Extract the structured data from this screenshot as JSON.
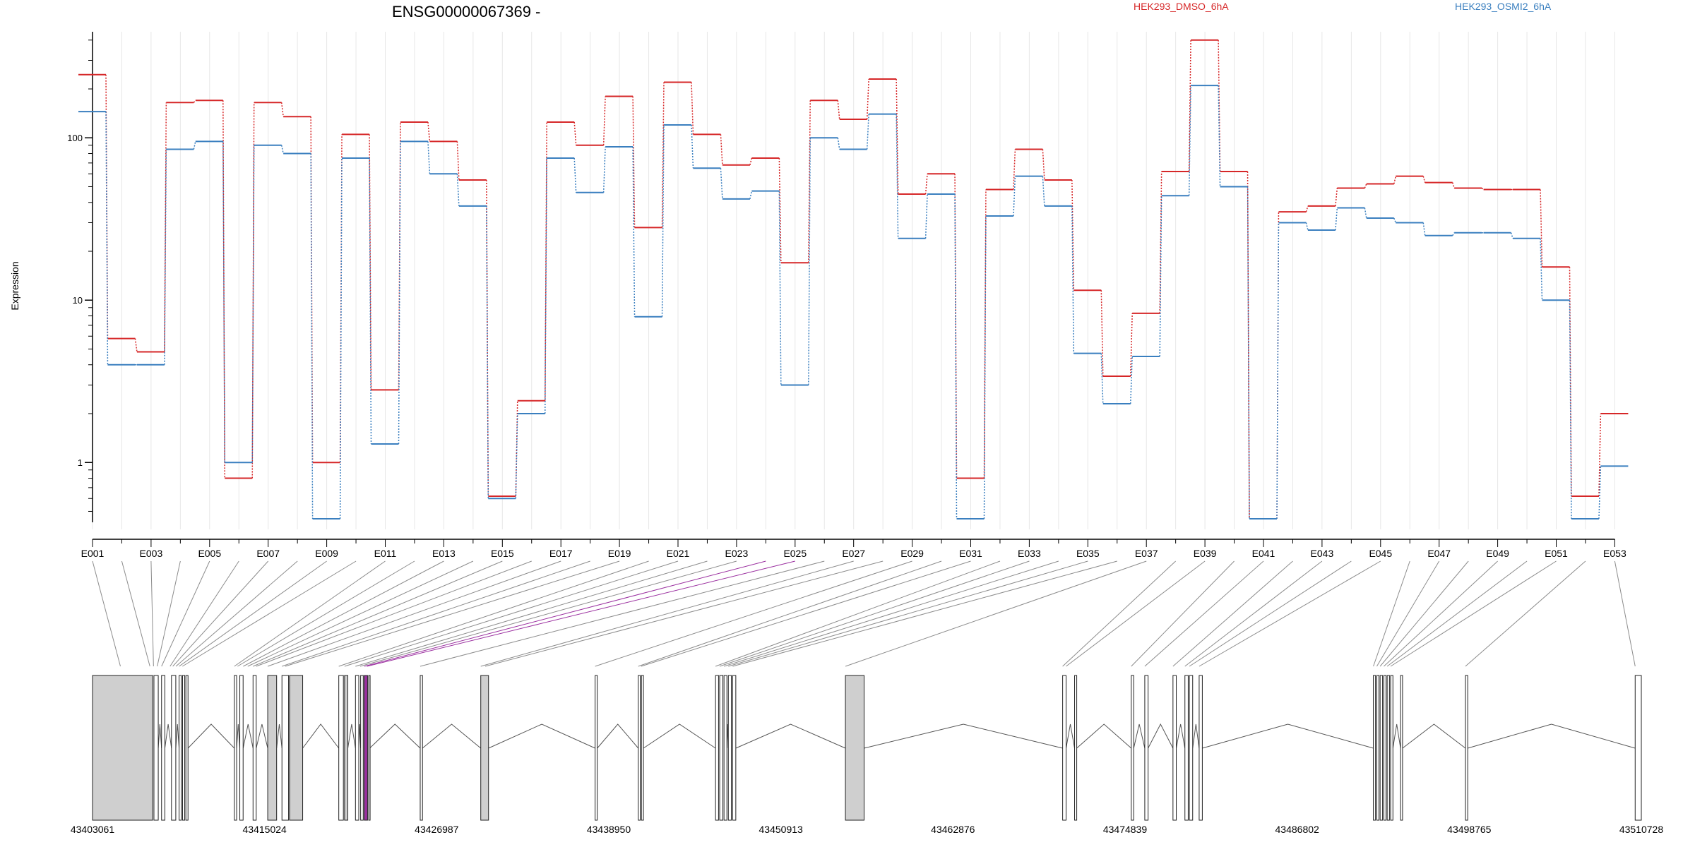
{
  "chart_data": {
    "type": "line",
    "title": "ENSG00000067369 -",
    "ylabel": "Expression",
    "y_scale": "log",
    "ylim": [
      0.45,
      450
    ],
    "y_ticks": [
      {
        "value": 1,
        "label": "1"
      },
      {
        "value": 10,
        "label": "10"
      },
      {
        "value": 100,
        "label": "100"
      }
    ],
    "legend_placement": "top-right",
    "colors": {
      "dmso": "#d62728",
      "osmi": "#3a7fbf",
      "purple": "#9b30a0"
    },
    "categories": [
      "E001",
      "E002",
      "E003",
      "E004",
      "E005",
      "E006",
      "E007",
      "E008",
      "E009",
      "E010",
      "E011",
      "E012",
      "E013",
      "E014",
      "E015",
      "E016",
      "E017",
      "E018",
      "E019",
      "E020",
      "E021",
      "E022",
      "E023",
      "E024",
      "E025",
      "E026",
      "E027",
      "E028",
      "E029",
      "E030",
      "E031",
      "E032",
      "E033",
      "E034",
      "E035",
      "E036",
      "E037",
      "E038",
      "E039",
      "E040",
      "E041",
      "E042",
      "E043",
      "E044",
      "E045",
      "E046",
      "E047",
      "E048",
      "E049",
      "E050",
      "E051",
      "E052",
      "E053"
    ],
    "series": [
      {
        "name": "HEK293_DMSO_6hA",
        "values": [
          245,
          5.8,
          4.8,
          165,
          170,
          0.8,
          165,
          135,
          1,
          105,
          2.8,
          125,
          95,
          55,
          0.62,
          2.4,
          125,
          90,
          180,
          28,
          220,
          105,
          68,
          75,
          17,
          170,
          130,
          230,
          45,
          60,
          0.8,
          48,
          85,
          55,
          11.5,
          3.4,
          8.3,
          62,
          400,
          62,
          0.45,
          35,
          38,
          49,
          52,
          58,
          53,
          49,
          48,
          48,
          16,
          0.62,
          2
        ]
      },
      {
        "name": "HEK293_OSMI2_6hA",
        "values": [
          145,
          4,
          4,
          85,
          95,
          1,
          90,
          80,
          0.45,
          75,
          1.3,
          95,
          60,
          38,
          0.6,
          2,
          75,
          46,
          88,
          7.9,
          120,
          65,
          42,
          47,
          3,
          100,
          85,
          140,
          24,
          45,
          0.45,
          33,
          58,
          38,
          4.7,
          2.3,
          4.5,
          44,
          210,
          50,
          0.45,
          30,
          27,
          37,
          32,
          30,
          25,
          26,
          26,
          24,
          10,
          0.45,
          0.95
        ]
      }
    ],
    "genomic_axis": {
      "start": 43403061,
      "end": 43510728,
      "tick_labels": [
        "43403061",
        "43415024",
        "43426987",
        "43438950",
        "43450913",
        "43462876",
        "43474839",
        "43486802",
        "43498765",
        "43510728"
      ]
    },
    "exons": [
      {
        "start": 43403061,
        "end": 43407239,
        "fill": "gray"
      },
      {
        "start": 43407330,
        "end": 43407630,
        "fill": "white"
      },
      {
        "start": 43407860,
        "end": 43408090,
        "fill": "white"
      },
      {
        "start": 43408550,
        "end": 43408850,
        "fill": "white"
      },
      {
        "start": 43409080,
        "end": 43409240,
        "fill": "white"
      },
      {
        "start": 43409320,
        "end": 43409470,
        "fill": "white"
      },
      {
        "start": 43409550,
        "end": 43409700,
        "fill": "white"
      },
      {
        "start": 43412920,
        "end": 43413080,
        "fill": "white"
      },
      {
        "start": 43413300,
        "end": 43413530,
        "fill": "white"
      },
      {
        "start": 43414220,
        "end": 43414440,
        "fill": "white"
      },
      {
        "start": 43415240,
        "end": 43415860,
        "fill": "gray"
      },
      {
        "start": 43416230,
        "end": 43416690,
        "fill": "white"
      },
      {
        "start": 43416760,
        "end": 43417670,
        "fill": "gray"
      },
      {
        "start": 43420180,
        "end": 43420500,
        "fill": "white"
      },
      {
        "start": 43420580,
        "end": 43420810,
        "fill": "gray"
      },
      {
        "start": 43421340,
        "end": 43421570,
        "fill": "white"
      },
      {
        "start": 43421700,
        "end": 43421880,
        "fill": "white"
      },
      {
        "start": 43421950,
        "end": 43422180,
        "fill": "purple"
      },
      {
        "start": 43422260,
        "end": 43422330,
        "fill": "white"
      },
      {
        "start": 43425840,
        "end": 43426000,
        "fill": "white"
      },
      {
        "start": 43430050,
        "end": 43430590,
        "fill": "gray"
      },
      {
        "start": 43438000,
        "end": 43438150,
        "fill": "white"
      },
      {
        "start": 43441000,
        "end": 43441140,
        "fill": "white"
      },
      {
        "start": 43441220,
        "end": 43441360,
        "fill": "white"
      },
      {
        "start": 43446370,
        "end": 43446580,
        "fill": "white"
      },
      {
        "start": 43446660,
        "end": 43446880,
        "fill": "white"
      },
      {
        "start": 43446960,
        "end": 43447160,
        "fill": "white"
      },
      {
        "start": 43447260,
        "end": 43447470,
        "fill": "white"
      },
      {
        "start": 43447560,
        "end": 43447780,
        "fill": "white"
      },
      {
        "start": 43455400,
        "end": 43456700,
        "fill": "gray"
      },
      {
        "start": 43470500,
        "end": 43470740,
        "fill": "white"
      },
      {
        "start": 43471330,
        "end": 43471480,
        "fill": "white"
      },
      {
        "start": 43475270,
        "end": 43475440,
        "fill": "white"
      },
      {
        "start": 43476210,
        "end": 43476440,
        "fill": "white"
      },
      {
        "start": 43478170,
        "end": 43478400,
        "fill": "white"
      },
      {
        "start": 43479000,
        "end": 43479230,
        "fill": "white"
      },
      {
        "start": 43479310,
        "end": 43479540,
        "fill": "white"
      },
      {
        "start": 43479990,
        "end": 43480210,
        "fill": "white"
      },
      {
        "start": 43492100,
        "end": 43492250,
        "fill": "white"
      },
      {
        "start": 43492340,
        "end": 43492490,
        "fill": "white"
      },
      {
        "start": 43492570,
        "end": 43492740,
        "fill": "white"
      },
      {
        "start": 43492830,
        "end": 43492980,
        "fill": "white"
      },
      {
        "start": 43493060,
        "end": 43493220,
        "fill": "white"
      },
      {
        "start": 43493300,
        "end": 43493460,
        "fill": "white"
      },
      {
        "start": 43493990,
        "end": 43494130,
        "fill": "white"
      },
      {
        "start": 43498500,
        "end": 43498660,
        "fill": "white"
      },
      {
        "start": 43510300,
        "end": 43510728,
        "fill": "white"
      }
    ],
    "exon_connectors": [
      {
        "bin": "E001",
        "position": 43405000,
        "color": "gray"
      },
      {
        "bin": "E002",
        "position": 43407050,
        "color": "gray"
      },
      {
        "bin": "E003",
        "position": 43407300,
        "color": "gray"
      },
      {
        "bin": "E004",
        "position": 43407560,
        "color": "gray"
      },
      {
        "bin": "E005",
        "position": 43407860,
        "color": "gray"
      },
      {
        "bin": "E006",
        "position": 43408450,
        "color": "gray"
      },
      {
        "bin": "E007",
        "position": 43408640,
        "color": "gray"
      },
      {
        "bin": "E008",
        "position": 43408860,
        "color": "gray"
      },
      {
        "bin": "E009",
        "position": 43409080,
        "color": "gray"
      },
      {
        "bin": "E010",
        "position": 43409310,
        "color": "gray"
      },
      {
        "bin": "E011",
        "position": 43412920,
        "color": "gray"
      },
      {
        "bin": "E012",
        "position": 43413140,
        "color": "gray"
      },
      {
        "bin": "E013",
        "position": 43413540,
        "color": "gray"
      },
      {
        "bin": "E014",
        "position": 43413850,
        "color": "gray"
      },
      {
        "bin": "E015",
        "position": 43414220,
        "color": "gray"
      },
      {
        "bin": "E016",
        "position": 43414440,
        "color": "gray"
      },
      {
        "bin": "E017",
        "position": 43415240,
        "color": "gray"
      },
      {
        "bin": "E018",
        "position": 43416230,
        "color": "gray"
      },
      {
        "bin": "E019",
        "position": 43416460,
        "color": "gray"
      },
      {
        "bin": "E020",
        "position": 43420180,
        "color": "gray"
      },
      {
        "bin": "E021",
        "position": 43420580,
        "color": "gray"
      },
      {
        "bin": "E022",
        "position": 43421340,
        "color": "gray"
      },
      {
        "bin": "E023",
        "position": 43421660,
        "color": "gray"
      },
      {
        "bin": "E024",
        "position": 43421950,
        "color": "purple"
      },
      {
        "bin": "E025",
        "position": 43422140,
        "color": "purple"
      },
      {
        "bin": "E026",
        "position": 43425840,
        "color": "gray"
      },
      {
        "bin": "E027",
        "position": 43430050,
        "color": "gray"
      },
      {
        "bin": "E028",
        "position": 43430360,
        "color": "gray"
      },
      {
        "bin": "E029",
        "position": 43438000,
        "color": "gray"
      },
      {
        "bin": "E030",
        "position": 43441000,
        "color": "gray"
      },
      {
        "bin": "E031",
        "position": 43441200,
        "color": "gray"
      },
      {
        "bin": "E032",
        "position": 43446370,
        "color": "gray"
      },
      {
        "bin": "E033",
        "position": 43446660,
        "color": "gray"
      },
      {
        "bin": "E034",
        "position": 43446960,
        "color": "gray"
      },
      {
        "bin": "E035",
        "position": 43447260,
        "color": "gray"
      },
      {
        "bin": "E036",
        "position": 43447560,
        "color": "gray"
      },
      {
        "bin": "E037",
        "position": 43455400,
        "color": "gray"
      },
      {
        "bin": "E038",
        "position": 43470500,
        "color": "gray"
      },
      {
        "bin": "E039",
        "position": 43470740,
        "color": "gray"
      },
      {
        "bin": "E040",
        "position": 43475270,
        "color": "gray"
      },
      {
        "bin": "E041",
        "position": 43476210,
        "color": "gray"
      },
      {
        "bin": "E042",
        "position": 43478170,
        "color": "gray"
      },
      {
        "bin": "E043",
        "position": 43479000,
        "color": "gray"
      },
      {
        "bin": "E044",
        "position": 43479310,
        "color": "gray"
      },
      {
        "bin": "E045",
        "position": 43479990,
        "color": "gray"
      },
      {
        "bin": "E046",
        "position": 43492100,
        "color": "gray"
      },
      {
        "bin": "E047",
        "position": 43492340,
        "color": "gray"
      },
      {
        "bin": "E048",
        "position": 43492570,
        "color": "gray"
      },
      {
        "bin": "E049",
        "position": 43492830,
        "color": "gray"
      },
      {
        "bin": "E050",
        "position": 43493060,
        "color": "gray"
      },
      {
        "bin": "E051",
        "position": 43493300,
        "color": "gray"
      },
      {
        "bin": "E052",
        "position": 43498500,
        "color": "gray"
      },
      {
        "bin": "E053",
        "position": 43510300,
        "color": "gray"
      }
    ]
  }
}
